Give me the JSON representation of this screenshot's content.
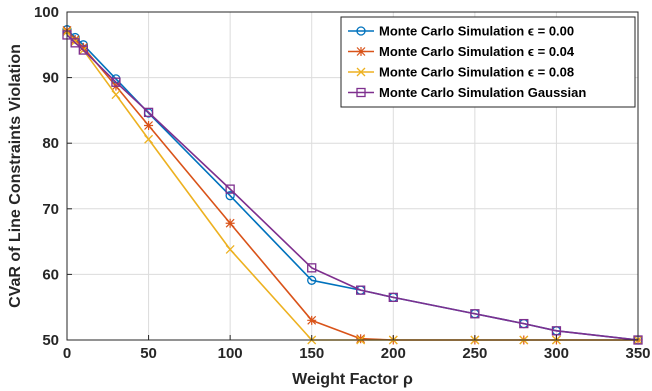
{
  "chart_data": {
    "type": "line",
    "title": "",
    "xlabel": "Weight Factor ρ",
    "ylabel": "CVaR of Line Constraints Violation",
    "xlim": [
      0,
      350
    ],
    "ylim": [
      50,
      100
    ],
    "xticks": [
      0,
      50,
      100,
      150,
      200,
      250,
      300,
      350
    ],
    "yticks": [
      50,
      60,
      70,
      80,
      90,
      100
    ],
    "grid": true,
    "legend_position": "top-right",
    "series": [
      {
        "name": "Monte Carlo Simulation ϵ = 0.00",
        "color": "#0072BD",
        "marker": "circle",
        "x": [
          0,
          5,
          10,
          30,
          50,
          100,
          150,
          180,
          200,
          250,
          280,
          300,
          350
        ],
        "y": [
          97.3,
          96.1,
          95.0,
          89.8,
          84.6,
          72.0,
          59.1,
          57.6,
          56.5,
          54.0,
          52.5,
          51.4,
          50.0
        ]
      },
      {
        "name": "Monte Carlo Simulation ϵ = 0.04",
        "color": "#D95319",
        "marker": "asterisk",
        "x": [
          0,
          5,
          10,
          30,
          50,
          100,
          150,
          180,
          200,
          250,
          280,
          300,
          350
        ],
        "y": [
          97.2,
          95.8,
          94.6,
          88.7,
          82.7,
          67.8,
          53.0,
          50.2,
          50.0,
          50.0,
          50.0,
          50.0,
          50.0
        ]
      },
      {
        "name": "Monte Carlo Simulation ϵ = 0.08",
        "color": "#EDB120",
        "marker": "x",
        "x": [
          0,
          5,
          10,
          30,
          50,
          100,
          150,
          180,
          200,
          250,
          280,
          300,
          350
        ],
        "y": [
          97.0,
          95.5,
          94.2,
          87.4,
          80.6,
          63.8,
          50.0,
          50.0,
          50.0,
          50.0,
          50.0,
          50.0,
          50.0
        ]
      },
      {
        "name": "Monte Carlo Simulation Gaussian",
        "color": "#7E2F8E",
        "marker": "square",
        "x": [
          0,
          5,
          10,
          30,
          50,
          100,
          150,
          180,
          200,
          250,
          280,
          300,
          350
        ],
        "y": [
          96.5,
          95.3,
          94.2,
          89.3,
          84.7,
          73.0,
          61.0,
          57.6,
          56.5,
          54.0,
          52.5,
          51.4,
          50.0
        ]
      }
    ]
  }
}
